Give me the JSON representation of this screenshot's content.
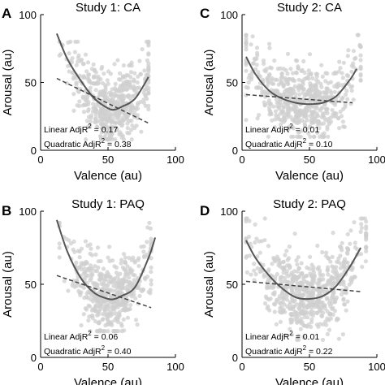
{
  "figure": {
    "xlabel": "Valence (au)",
    "ylabel": "Arousal (au)",
    "superscript": "2",
    "colors": {
      "points": "#cfcfcf",
      "quadratic": "#555555",
      "linear": "#444444",
      "axis": "#000000"
    }
  },
  "chart_data": [
    {
      "panel_label": "A",
      "type": "scatter",
      "title": "Study 1: CA",
      "xlabel": "Valence (au)",
      "ylabel": "Arousal (au)",
      "xlim": [
        0,
        100
      ],
      "ylim": [
        0,
        100
      ],
      "x_ticks": [
        "0",
        "50",
        "100"
      ],
      "y_ticks": [
        "0",
        "50",
        "100"
      ],
      "linear_stat": "Linear AdjR",
      "linear_value": " = 0.17",
      "quad_stat": "Quadratic AdjR",
      "quad_value": " = 0.38",
      "linear_fit": {
        "x": [
          12,
          80
        ],
        "y": [
          53,
          20
        ]
      },
      "quadratic_fit": {
        "x": [
          12,
          20,
          30,
          40,
          50,
          55,
          60,
          70,
          80
        ],
        "y": [
          86,
          67,
          51,
          38,
          31,
          30,
          32,
          38,
          54
        ]
      },
      "scatter_cloud": {
        "x_range": [
          14,
          80
        ],
        "y_range": [
          8,
          80
        ],
        "center_x": 52,
        "center_y": 40,
        "n": 520
      }
    },
    {
      "panel_label": "C",
      "type": "scatter",
      "title": "Study 2: CA",
      "xlabel": "Valence (au)",
      "ylabel": "Arousal (au)",
      "xlim": [
        0,
        100
      ],
      "ylim": [
        0,
        100
      ],
      "x_ticks": [
        "0",
        "50",
        "100"
      ],
      "y_ticks": [
        "0",
        "50",
        "100"
      ],
      "linear_stat": "Linear AdjR",
      "linear_value": " = 0.01",
      "quad_stat": "Quadratic AdjR",
      "quad_value": " = 0.10",
      "linear_fit": {
        "x": [
          3,
          82
        ],
        "y": [
          41,
          35
        ]
      },
      "quadratic_fit": {
        "x": [
          3,
          10,
          20,
          30,
          40,
          50,
          60,
          70,
          80,
          85
        ],
        "y": [
          69,
          56,
          44,
          38,
          35,
          34,
          35,
          40,
          52,
          60
        ]
      },
      "scatter_cloud": {
        "x_range": [
          3,
          88
        ],
        "y_range": [
          10,
          85
        ],
        "center_x": 45,
        "center_y": 42,
        "n": 620
      }
    },
    {
      "panel_label": "B",
      "type": "scatter",
      "title": "Study 1: PAQ",
      "xlabel": "Valence (au)",
      "ylabel": "Arousal (au)",
      "xlim": [
        0,
        100
      ],
      "ylim": [
        0,
        100
      ],
      "x_ticks": [
        "0",
        "50",
        "100"
      ],
      "y_ticks": [
        "0",
        "50",
        "100"
      ],
      "linear_stat": "Linear AdjR",
      "linear_value": " = 0.06",
      "quad_stat": "Quadratic AdjR",
      "quad_value": " = 0.40",
      "linear_fit": {
        "x": [
          12,
          82
        ],
        "y": [
          56,
          34
        ]
      },
      "quadratic_fit": {
        "x": [
          12,
          20,
          30,
          40,
          50,
          55,
          60,
          70,
          80,
          85
        ],
        "y": [
          94,
          72,
          54,
          44,
          40,
          40,
          42,
          48,
          68,
          82
        ]
      },
      "scatter_cloud": {
        "x_range": [
          14,
          82
        ],
        "y_range": [
          18,
          92
        ],
        "center_x": 52,
        "center_y": 40,
        "n": 520
      }
    },
    {
      "panel_label": "D",
      "type": "scatter",
      "title": "Study 2: PAQ",
      "xlabel": "Valence (au)",
      "ylabel": "Arousal (au)",
      "xlim": [
        0,
        100
      ],
      "ylim": [
        0,
        100
      ],
      "x_ticks": [
        "0",
        "50",
        "100"
      ],
      "y_ticks": [
        "0",
        "50",
        "100"
      ],
      "linear_stat": "Linear AdjR",
      "linear_value": " = 0.01",
      "quad_stat": "Quadratic AdjR",
      "quad_value": " = 0.22",
      "linear_fit": {
        "x": [
          3,
          88
        ],
        "y": [
          52,
          45
        ]
      },
      "quadratic_fit": {
        "x": [
          3,
          10,
          20,
          30,
          40,
          50,
          60,
          70,
          80,
          88
        ],
        "y": [
          80,
          68,
          56,
          47,
          41,
          40,
          42,
          49,
          62,
          75
        ]
      },
      "scatter_cloud": {
        "x_range": [
          3,
          92
        ],
        "y_range": [
          12,
          95
        ],
        "center_x": 50,
        "center_y": 48,
        "n": 640
      }
    }
  ]
}
